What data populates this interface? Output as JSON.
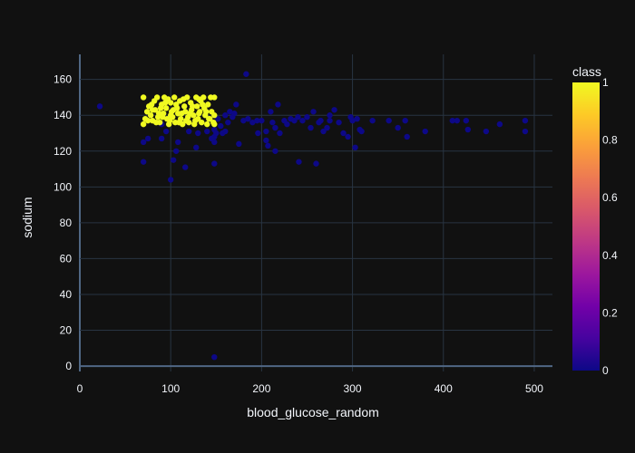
{
  "chart_data": {
    "type": "scatter",
    "xlabel": "blood_glucose_random",
    "ylabel": "sodium",
    "xlim": [
      0,
      520
    ],
    "ylim": [
      -3,
      174
    ],
    "x_ticks": [
      0,
      100,
      200,
      300,
      400,
      500
    ],
    "y_ticks": [
      0,
      20,
      40,
      60,
      80,
      100,
      120,
      140,
      160
    ],
    "colorbar": {
      "title": "class",
      "range": [
        0,
        1
      ],
      "ticks": [
        0,
        0.2,
        0.4,
        0.6,
        0.8,
        1
      ],
      "tick_labels": [
        "0",
        "0.2",
        "0.4",
        "0.6",
        "0.8",
        "1"
      ],
      "colors": [
        "#0d0887",
        "#46039f",
        "#7201a8",
        "#9c179e",
        "#bd3786",
        "#d8576b",
        "#ed7953",
        "#fb9f3a",
        "#fdca26",
        "#f0f921"
      ]
    },
    "grid": true,
    "series": [
      {
        "class": 0,
        "color": "#0d0887",
        "points": [
          [
            22,
            145
          ],
          [
            70,
            114
          ],
          [
            70,
            125
          ],
          [
            75,
            127
          ],
          [
            90,
            127
          ],
          [
            100,
            104
          ],
          [
            103,
            115
          ],
          [
            106,
            120
          ],
          [
            108,
            125
          ],
          [
            116,
            111
          ],
          [
            128,
            122
          ],
          [
            148,
            5
          ],
          [
            148,
            113
          ],
          [
            148,
            125
          ],
          [
            148,
            128
          ],
          [
            148,
            132
          ],
          [
            150,
            130
          ],
          [
            152,
            138
          ],
          [
            155,
            134
          ],
          [
            157,
            130
          ],
          [
            160,
            140
          ],
          [
            163,
            136
          ],
          [
            165,
            142
          ],
          [
            168,
            139
          ],
          [
            172,
            146
          ],
          [
            175,
            124
          ],
          [
            180,
            137
          ],
          [
            183,
            163
          ],
          [
            190,
            136
          ],
          [
            196,
            130
          ],
          [
            200,
            137
          ],
          [
            205,
            126
          ],
          [
            207,
            123
          ],
          [
            210,
            142
          ],
          [
            212,
            136
          ],
          [
            215,
            133
          ],
          [
            218,
            146
          ],
          [
            220,
            130
          ],
          [
            215,
            120
          ],
          [
            225,
            137
          ],
          [
            228,
            135
          ],
          [
            232,
            138
          ],
          [
            236,
            137
          ],
          [
            240,
            139
          ],
          [
            241,
            114
          ],
          [
            245,
            137
          ],
          [
            250,
            139
          ],
          [
            254,
            133
          ],
          [
            257,
            142
          ],
          [
            260,
            113
          ],
          [
            263,
            136
          ],
          [
            268,
            131
          ],
          [
            272,
            133
          ],
          [
            275,
            137
          ],
          [
            280,
            143
          ],
          [
            285,
            136
          ],
          [
            290,
            130
          ],
          [
            295,
            128
          ],
          [
            298,
            139
          ],
          [
            300,
            137
          ],
          [
            303,
            122
          ],
          [
            305,
            138
          ],
          [
            308,
            132
          ],
          [
            310,
            131
          ],
          [
            322,
            137
          ],
          [
            340,
            137
          ],
          [
            350,
            133
          ],
          [
            358,
            137
          ],
          [
            360,
            128
          ],
          [
            380,
            131
          ],
          [
            410,
            137
          ],
          [
            415,
            137
          ],
          [
            425,
            137
          ],
          [
            427,
            132
          ],
          [
            447,
            131
          ],
          [
            462,
            135
          ],
          [
            490,
            137
          ],
          [
            490,
            131
          ],
          [
            90,
            135
          ],
          [
            95,
            131
          ],
          [
            120,
            131
          ],
          [
            130,
            130
          ],
          [
            140,
            131
          ],
          [
            145,
            127
          ],
          [
            160,
            131
          ],
          [
            170,
            141
          ],
          [
            185,
            138
          ],
          [
            195,
            137
          ],
          [
            205,
            131
          ],
          [
            265,
            137
          ],
          [
            275,
            140
          ]
        ]
      },
      {
        "class": 1,
        "color": "#f0f921",
        "points": [
          [
            70,
            150
          ],
          [
            70,
            135
          ],
          [
            72,
            138
          ],
          [
            74,
            142
          ],
          [
            76,
            145
          ],
          [
            78,
            140
          ],
          [
            80,
            137
          ],
          [
            82,
            148
          ],
          [
            83,
            143
          ],
          [
            85,
            150
          ],
          [
            86,
            139
          ],
          [
            88,
            136
          ],
          [
            90,
            146
          ],
          [
            92,
            141
          ],
          [
            93,
            150
          ],
          [
            95,
            144
          ],
          [
            96,
            138
          ],
          [
            98,
            135
          ],
          [
            100,
            147
          ],
          [
            101,
            142
          ],
          [
            102,
            139
          ],
          [
            104,
            150
          ],
          [
            105,
            136
          ],
          [
            107,
            144
          ],
          [
            108,
            141
          ],
          [
            110,
            148
          ],
          [
            111,
            138
          ],
          [
            113,
            135
          ],
          [
            115,
            145
          ],
          [
            116,
            142
          ],
          [
            118,
            150
          ],
          [
            119,
            139
          ],
          [
            120,
            136
          ],
          [
            122,
            147
          ],
          [
            123,
            143
          ],
          [
            125,
            140
          ],
          [
            126,
            135
          ],
          [
            128,
            150
          ],
          [
            129,
            145
          ],
          [
            130,
            138
          ],
          [
            132,
            142
          ],
          [
            133,
            148
          ],
          [
            134,
            136
          ],
          [
            136,
            150
          ],
          [
            137,
            144
          ],
          [
            138,
            140
          ],
          [
            140,
            135
          ],
          [
            141,
            146
          ],
          [
            142,
            138
          ],
          [
            144,
            150
          ],
          [
            145,
            142
          ],
          [
            147,
            136
          ],
          [
            148,
            150
          ],
          [
            148,
            140
          ],
          [
            148,
            135
          ],
          [
            75,
            137
          ],
          [
            80,
            143
          ],
          [
            87,
            141
          ],
          [
            94,
            147
          ],
          [
            99,
            137
          ],
          [
            106,
            146
          ],
          [
            112,
            141
          ],
          [
            117,
            137
          ],
          [
            124,
            145
          ],
          [
            131,
            141
          ],
          [
            135,
            146
          ],
          [
            139,
            142
          ],
          [
            143,
            138
          ],
          [
            79,
            146
          ],
          [
            91,
            139
          ],
          [
            103,
            143
          ],
          [
            109,
            136
          ],
          [
            121,
            141
          ],
          [
            127,
            137
          ],
          [
            84,
            136
          ],
          [
            97,
            149
          ],
          [
            114,
            149
          ],
          [
            131,
            149
          ],
          [
            89,
            144
          ],
          [
            100,
            140
          ]
        ]
      }
    ]
  }
}
